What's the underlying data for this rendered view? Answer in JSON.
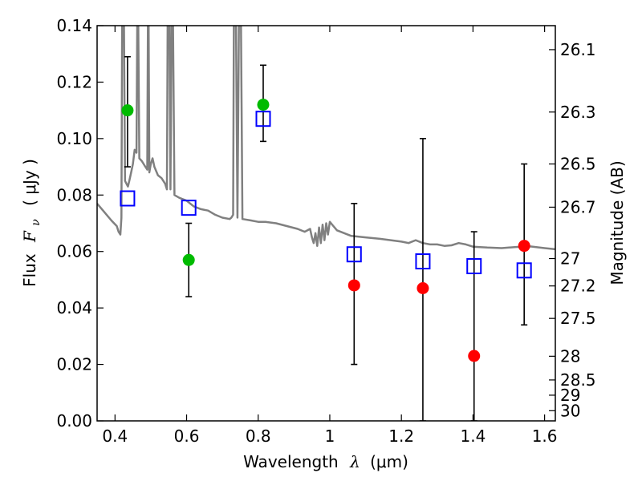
{
  "chart_data": {
    "type": "scatter",
    "xlabel": "Wavelength",
    "xlabel_symbol": "λ",
    "xlabel_unit": "(μm)",
    "ylabel": "Flux",
    "ylabel_symbol": "F",
    "ylabel_subscript": "ν",
    "ylabel_unit": "( μJy )",
    "y2label": "Magnitude (AB)",
    "xlim": [
      0.35,
      1.63
    ],
    "ylim": [
      0.0,
      0.14
    ],
    "grid": false,
    "x_ticks": [
      0.4,
      0.6,
      0.8,
      1.0,
      1.2,
      1.4,
      1.6
    ],
    "x_tick_labels": [
      "0.4",
      "0.6",
      "0.8",
      "1",
      "1.2",
      "1.4",
      "1.6"
    ],
    "y_ticks": [
      0.0,
      0.02,
      0.04,
      0.06,
      0.08,
      0.1,
      0.12,
      0.14
    ],
    "y_tick_labels": [
      "0.00",
      "0.02",
      "0.04",
      "0.06",
      "0.08",
      "0.10",
      "0.12",
      "0.14"
    ],
    "y2_ticks": [
      {
        "label": "26.1",
        "flux": 0.1315
      },
      {
        "label": "26.3",
        "flux": 0.1094
      },
      {
        "label": "26.5",
        "flux": 0.091
      },
      {
        "label": "26.7",
        "flux": 0.0757
      },
      {
        "label": "27",
        "flux": 0.0575
      },
      {
        "label": "27.2",
        "flux": 0.0478
      },
      {
        "label": "27.5",
        "flux": 0.0363
      },
      {
        "label": "28",
        "flux": 0.0229
      },
      {
        "label": "28.5",
        "flux": 0.0145
      },
      {
        "label": "29",
        "flux": 0.0091
      },
      {
        "label": "30",
        "flux": 0.0036
      }
    ],
    "series": [
      {
        "marker": "circle",
        "color": "#00bb00",
        "points": [
          {
            "x": 0.435,
            "y": 0.11,
            "ylo": 0.09,
            "yhi": 0.129
          },
          {
            "x": 0.606,
            "y": 0.057,
            "ylo": 0.044,
            "yhi": 0.07
          },
          {
            "x": 0.814,
            "y": 0.112,
            "ylo": 0.099,
            "yhi": 0.126
          }
        ]
      },
      {
        "marker": "circle",
        "color": "#ff0000",
        "points": [
          {
            "x": 1.068,
            "y": 0.048,
            "ylo": 0.02,
            "yhi": 0.077
          },
          {
            "x": 1.26,
            "y": 0.047,
            "ylo": 0.0,
            "yhi": 0.1
          },
          {
            "x": 1.403,
            "y": 0.023,
            "ylo": 0.0,
            "yhi": 0.067
          },
          {
            "x": 1.543,
            "y": 0.062,
            "ylo": 0.034,
            "yhi": 0.091
          }
        ]
      },
      {
        "marker": "open-square",
        "color": "#0000ff",
        "points": [
          {
            "x": 0.435,
            "y": 0.0788
          },
          {
            "x": 0.606,
            "y": 0.0755
          },
          {
            "x": 0.814,
            "y": 0.107
          },
          {
            "x": 1.068,
            "y": 0.059
          },
          {
            "x": 1.26,
            "y": 0.0565
          },
          {
            "x": 1.403,
            "y": 0.0548
          },
          {
            "x": 1.543,
            "y": 0.0533
          }
        ]
      }
    ],
    "model_spectrum": {
      "color": "#808080",
      "points": [
        [
          0.35,
          0.077
        ],
        [
          0.37,
          0.074
        ],
        [
          0.39,
          0.071
        ],
        [
          0.405,
          0.069
        ],
        [
          0.41,
          0.067
        ],
        [
          0.415,
          0.066
        ],
        [
          0.418,
          0.072
        ],
        [
          0.42,
          0.14
        ],
        [
          0.425,
          0.14
        ],
        [
          0.428,
          0.085
        ],
        [
          0.432,
          0.084
        ],
        [
          0.436,
          0.083
        ],
        [
          0.44,
          0.085
        ],
        [
          0.445,
          0.088
        ],
        [
          0.45,
          0.091
        ],
        [
          0.455,
          0.096
        ],
        [
          0.46,
          0.095
        ],
        [
          0.462,
          0.14
        ],
        [
          0.465,
          0.14
        ],
        [
          0.468,
          0.093
        ],
        [
          0.475,
          0.092
        ],
        [
          0.485,
          0.09
        ],
        [
          0.49,
          0.089
        ],
        [
          0.492,
          0.14
        ],
        [
          0.494,
          0.14
        ],
        [
          0.496,
          0.088
        ],
        [
          0.5,
          0.091
        ],
        [
          0.505,
          0.093
        ],
        [
          0.51,
          0.09
        ],
        [
          0.52,
          0.087
        ],
        [
          0.53,
          0.086
        ],
        [
          0.54,
          0.084
        ],
        [
          0.545,
          0.082
        ],
        [
          0.547,
          0.14
        ],
        [
          0.552,
          0.14
        ],
        [
          0.555,
          0.082
        ],
        [
          0.558,
          0.14
        ],
        [
          0.562,
          0.14
        ],
        [
          0.566,
          0.08
        ],
        [
          0.58,
          0.079
        ],
        [
          0.6,
          0.078
        ],
        [
          0.62,
          0.076
        ],
        [
          0.64,
          0.075
        ],
        [
          0.66,
          0.0745
        ],
        [
          0.68,
          0.073
        ],
        [
          0.7,
          0.072
        ],
        [
          0.72,
          0.0715
        ],
        [
          0.725,
          0.072
        ],
        [
          0.73,
          0.073
        ],
        [
          0.732,
          0.14
        ],
        [
          0.738,
          0.14
        ],
        [
          0.742,
          0.072
        ],
        [
          0.746,
          0.14
        ],
        [
          0.752,
          0.14
        ],
        [
          0.756,
          0.0715
        ],
        [
          0.78,
          0.071
        ],
        [
          0.8,
          0.0705
        ],
        [
          0.82,
          0.0705
        ],
        [
          0.85,
          0.07
        ],
        [
          0.88,
          0.069
        ],
        [
          0.91,
          0.068
        ],
        [
          0.93,
          0.067
        ],
        [
          0.945,
          0.068
        ],
        [
          0.95,
          0.065
        ],
        [
          0.955,
          0.063
        ],
        [
          0.96,
          0.0665
        ],
        [
          0.965,
          0.062
        ],
        [
          0.97,
          0.0685
        ],
        [
          0.975,
          0.063
        ],
        [
          0.98,
          0.0695
        ],
        [
          0.985,
          0.064
        ],
        [
          0.99,
          0.07
        ],
        [
          0.995,
          0.066
        ],
        [
          1.0,
          0.0705
        ],
        [
          1.01,
          0.069
        ],
        [
          1.02,
          0.0675
        ],
        [
          1.04,
          0.0665
        ],
        [
          1.06,
          0.0655
        ],
        [
          1.1,
          0.065
        ],
        [
          1.14,
          0.0645
        ],
        [
          1.2,
          0.0635
        ],
        [
          1.22,
          0.063
        ],
        [
          1.24,
          0.064
        ],
        [
          1.26,
          0.063
        ],
        [
          1.28,
          0.0625
        ],
        [
          1.3,
          0.0625
        ],
        [
          1.32,
          0.062
        ],
        [
          1.34,
          0.0622
        ],
        [
          1.36,
          0.063
        ],
        [
          1.38,
          0.0625
        ],
        [
          1.4,
          0.0617
        ],
        [
          1.44,
          0.0614
        ],
        [
          1.48,
          0.0612
        ],
        [
          1.52,
          0.0616
        ],
        [
          1.56,
          0.0618
        ],
        [
          1.6,
          0.0612
        ],
        [
          1.63,
          0.0608
        ]
      ]
    }
  }
}
